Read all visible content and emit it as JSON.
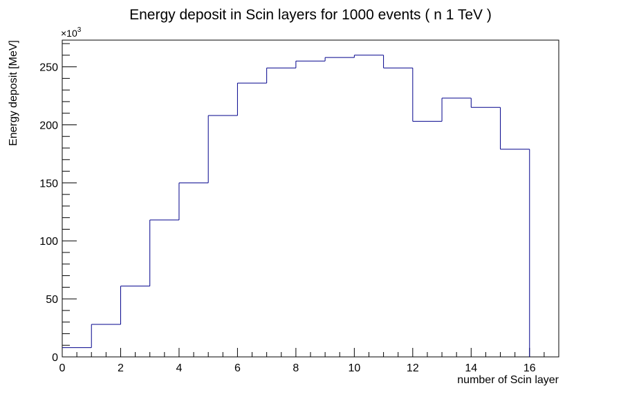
{
  "chart_data": {
    "type": "bar",
    "style": "step-histogram",
    "title": "Energy deposit in Scin layers for 1000 events ( n  1 TeV )",
    "xlabel": "number of Scin layer",
    "ylabel": "Energy deposit [MeV]",
    "y_multiplier": "×10",
    "y_multiplier_exp": "3",
    "xlim": [
      0,
      17
    ],
    "ylim": [
      0,
      273
    ],
    "x_ticks": [
      0,
      2,
      4,
      6,
      8,
      10,
      12,
      14,
      16
    ],
    "y_ticks": [
      0,
      50,
      100,
      150,
      200,
      250
    ],
    "bin_edges": [
      0,
      1,
      2,
      3,
      4,
      5,
      6,
      7,
      8,
      9,
      10,
      11,
      12,
      13,
      14,
      15,
      16
    ],
    "values": [
      8,
      28,
      61,
      118,
      150,
      208,
      236,
      249,
      255,
      258,
      260,
      249,
      203,
      223,
      215,
      179
    ],
    "line_color": "#00008b",
    "grid": false,
    "legend": "none"
  }
}
